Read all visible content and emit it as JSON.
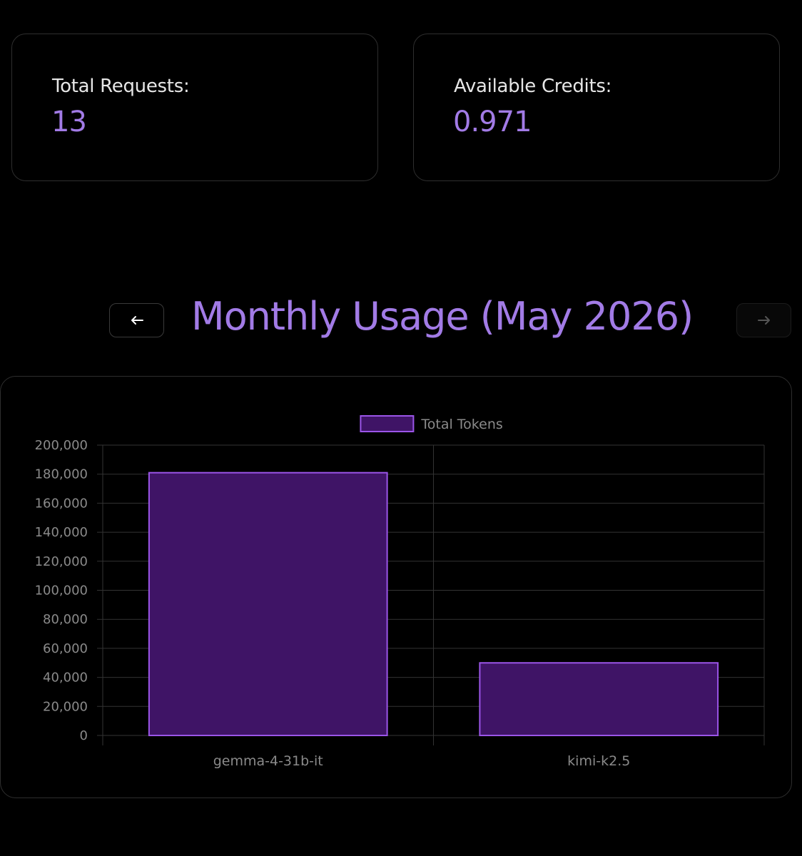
{
  "stats": {
    "total_requests": {
      "label": "Total Requests:",
      "value": "13"
    },
    "available_credits": {
      "label": "Available Credits:",
      "value": "0.971"
    }
  },
  "usage_nav": {
    "title": "Monthly Usage (May 2026)",
    "prev_icon": "arrow-left-icon",
    "next_icon": "arrow-right-icon"
  },
  "colors": {
    "accent": "#a27be6",
    "bar_fill": "#3f1466",
    "bar_border": "#9b55e8",
    "grid": "#333333",
    "tick_text": "#8a8a8a"
  },
  "chart_data": {
    "type": "bar",
    "categories": [
      "gemma-4-31b-it",
      "kimi-k2.5"
    ],
    "series": [
      {
        "name": "Total Tokens",
        "values": [
          181000,
          50000
        ]
      }
    ],
    "ylim": [
      0,
      200000
    ],
    "yticks": [
      "0",
      "20,000",
      "40,000",
      "60,000",
      "80,000",
      "100,000",
      "120,000",
      "140,000",
      "160,000",
      "180,000",
      "200,000"
    ],
    "legend_position": "top-center",
    "grid": true
  }
}
